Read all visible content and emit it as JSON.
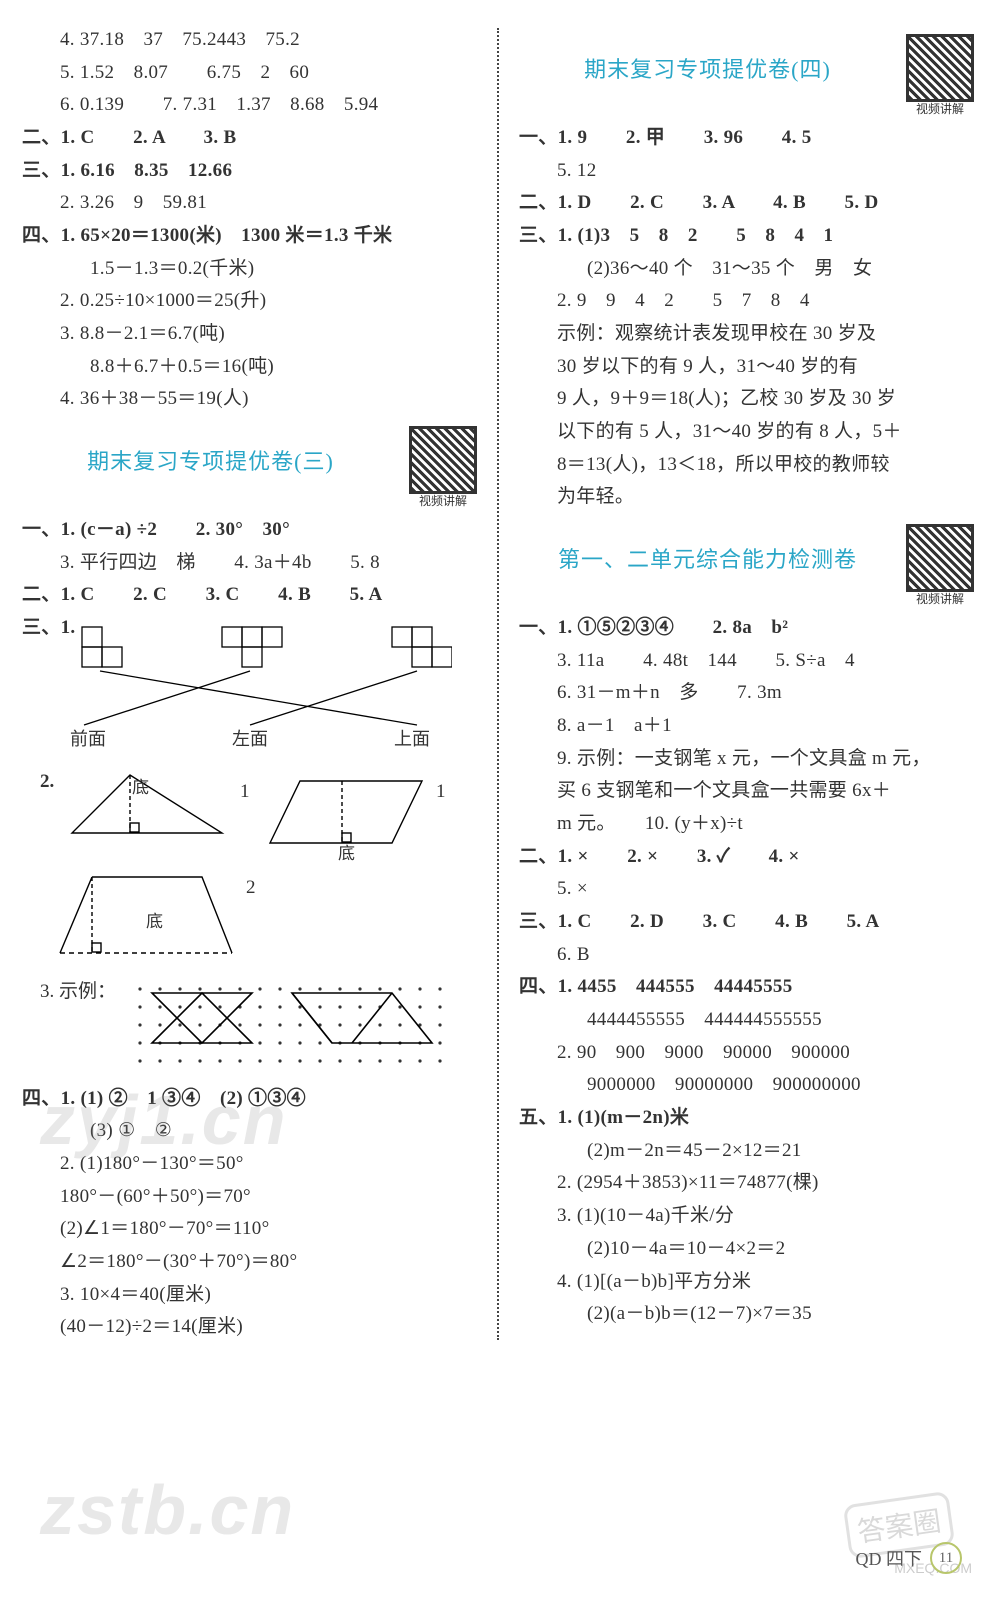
{
  "left": {
    "p2_l1": "4. 37.18　37　75.2443　75.2",
    "p2_l2": "5. 1.52　8.07　　6.75　2　60",
    "p2_l3": "6. 0.139　　7. 7.31　1.37　8.68　5.94",
    "p2_s2": "二、1. C　　2. A　　3. B",
    "p2_s3a": "三、1. 6.16　8.35　12.66",
    "p2_s3b": "2. 3.26　9　59.81",
    "p2_s4a": "四、1. 65×20＝1300(米)　1300 米＝1.3 千米",
    "p2_s4b": "1.5－1.3＝0.2(千米)",
    "p2_s4c": "2. 0.25÷10×1000＝25(升)",
    "p2_s4d": "3. 8.8－2.1＝6.7(吨)",
    "p2_s4e": "8.8＋6.7＋0.5＝16(吨)",
    "p2_s4f": "4. 36＋38－55＝19(人)",
    "p3_title": "期末复习专项提优卷(三)",
    "qr_label": "视频讲解",
    "p3_l1": "一、1. (c－a) ÷2　　2. 30°　30°",
    "p3_l2": "3. 平行四边　梯　　4. 3a＋4b　　5. 8",
    "p3_s2": "二、1. C　　2. C　　3. C　　4. B　　5. A",
    "p3_s3_hdr": "三、1.",
    "p3_views": {
      "front": "前面",
      "left": "左面",
      "top": "上面"
    },
    "p3_q2_label": "2.",
    "p3_q2_di": "底",
    "p3_q2_one": "1",
    "p3_q2_two": "2",
    "p3_q3": "3. 示例：",
    "p3_s4_l1": "四、1. (1) ②　1 ③④　(2) ①③④",
    "p3_s4_l2": "(3) ①　②",
    "p3_s4_l3": "2. (1)180°－130°＝50°",
    "p3_s4_l4": "180°－(60°＋50°)＝70°",
    "p3_s4_l5": "(2)∠1＝180°－70°＝110°",
    "p3_s4_l6": "∠2＝180°－(30°＋70°)＝80°",
    "p3_s4_l7": "3. 10×4＝40(厘米)",
    "p3_s4_l8": "(40－12)÷2＝14(厘米)"
  },
  "right": {
    "p4_title": "期末复习专项提优卷(四)",
    "qr_label": "视频讲解",
    "p4_l1": "一、1. 9　　2. 甲　　3. 96　　4. 5",
    "p4_l2": "5. 12",
    "p4_s2": "二、1. D　　2. C　　3. A　　4. B　　5. D",
    "p4_s3a": "三、1. (1)3　5　8　2　　5　8　4　1",
    "p4_s3b": "(2)36～40 个　31～35 个　男　女",
    "p4_s3c": "2. 9　9　4　2　　5　7　8　4",
    "p4_s3d": "示例：观察统计表发现甲校在 30 岁及",
    "p4_s3e": "30 岁以下的有 9 人，31～40 岁的有",
    "p4_s3f": "9 人，9＋9＝18(人)；乙校 30 岁及 30 岁",
    "p4_s3g": "以下的有 5 人，31～40 岁的有 8 人，5＋",
    "p4_s3h": "8＝13(人)，13＜18，所以甲校的教师较",
    "p4_s3i": "为年轻。",
    "u12_title": "第一、二单元综合能力检测卷",
    "u12_l1": "一、1. ①⑤②③④　　2. 8a　b²",
    "u12_l2": "3. 11a　　4. 48t　144　　5. S÷a　4",
    "u12_l3": "6. 31－m＋n　多　　7. 3m",
    "u12_l4": "8.  a－1　a＋1",
    "u12_l5": "9. 示例：一支钢笔 x 元，一个文具盒 m 元，",
    "u12_l6": "买 6 支钢笔和一个文具盒一共需要 6x＋",
    "u12_l7": "m 元。　　10. (y＋x)÷t",
    "u12_s2": "二、1. ×　　2. ×　　3. ✓　　4. ×",
    "u12_s2b": "5. ×",
    "u12_s3": "三、1. C　　2. D　　3. C　　4. B　　5. A",
    "u12_s3b": "6. B",
    "u12_s4a": "四、1. 4455　444555　44445555",
    "u12_s4b": "4444455555　444444555555",
    "u12_s4c": "2. 90　900　9000　90000　900000",
    "u12_s4d": "9000000　90000000　900000000",
    "u12_s5a": "五、1. (1)(m－2n)米",
    "u12_s5b": "(2)m－2n＝45－2×12＝21",
    "u12_s5c": "2. (2954＋3853)×11＝74877(棵)",
    "u12_s5d": "3. (1)(10－4a)千米/分",
    "u12_s5e": "(2)10－4a＝10－4×2＝2",
    "u12_s5f": "4. (1)[(a－b)b]平方分米",
    "u12_s5g": "(2)(a－b)b＝(12－7)×7＝35"
  },
  "footer": {
    "code": "QD 四下",
    "page": "11"
  },
  "watermark1": "zyj1.cn",
  "watermark2": "zstb.cn",
  "stamp": "答案圈",
  "mxeq": "MXEQ.COM"
}
